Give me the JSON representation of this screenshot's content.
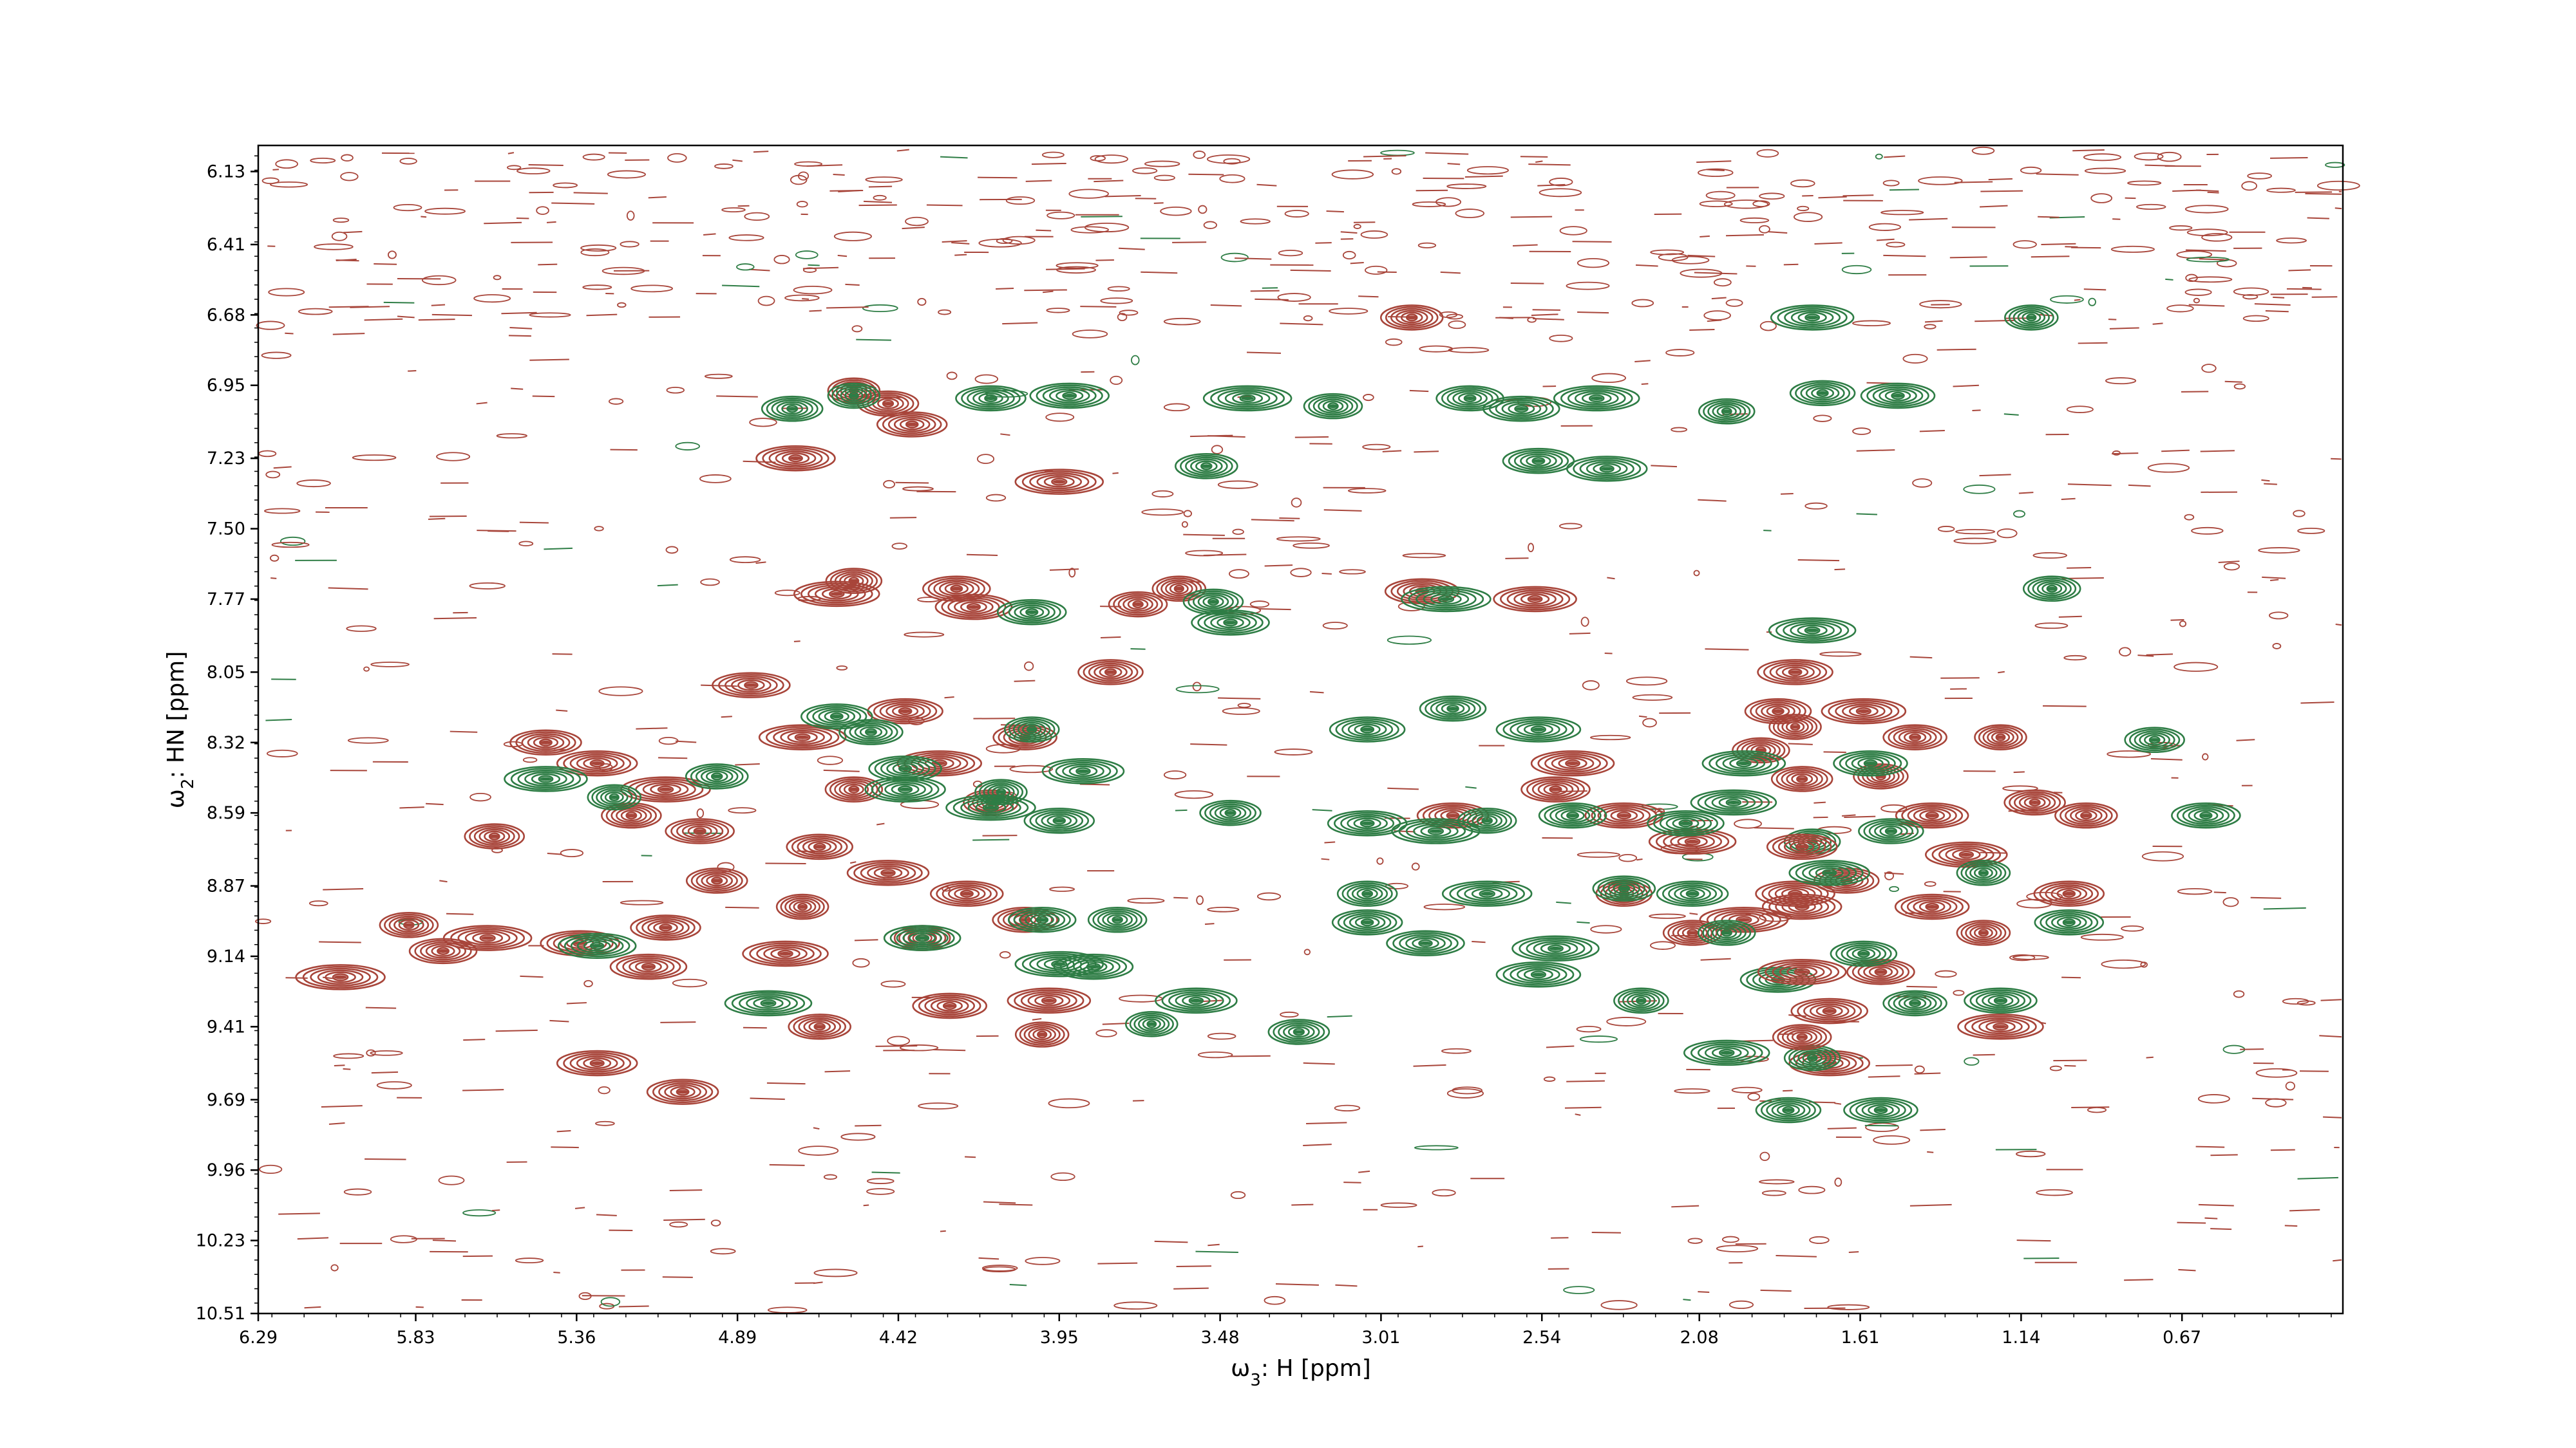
{
  "chart_data": {
    "type": "contour",
    "xlabel_symbol": "ω",
    "xlabel_sub": "3",
    "xlabel_rest": ": H [ppm]",
    "ylabel_symbol": "ω",
    "ylabel_sub": "2",
    "ylabel_rest": ": HN [ppm]",
    "xlim": [
      6.29,
      0.2
    ],
    "ylim": [
      6.03,
      10.51
    ],
    "x_ticks": [
      "6.29",
      "5.83",
      "5.36",
      "4.89",
      "4.42",
      "3.95",
      "3.48",
      "3.01",
      "2.54",
      "2.08",
      "1.61",
      "1.14",
      "0.67"
    ],
    "y_ticks": [
      "6.13",
      "6.41",
      "6.68",
      "6.95",
      "7.23",
      "7.50",
      "7.77",
      "8.05",
      "8.32",
      "8.59",
      "8.87",
      "9.14",
      "9.41",
      "9.69",
      "9.96",
      "10.23",
      "10.51"
    ],
    "colors": {
      "positive": "#a8453a",
      "negative": "#2e7d45"
    },
    "series": [
      {
        "sign": "positive",
        "peaks": [
          {
            "x": 4.55,
            "y": 6.97
          },
          {
            "x": 4.45,
            "y": 7.02
          },
          {
            "x": 4.38,
            "y": 7.1
          },
          {
            "x": 4.72,
            "y": 7.23
          },
          {
            "x": 3.95,
            "y": 7.32
          },
          {
            "x": 3.72,
            "y": 7.79
          },
          {
            "x": 4.25,
            "y": 7.73
          },
          {
            "x": 4.2,
            "y": 7.8
          },
          {
            "x": 4.6,
            "y": 7.75
          },
          {
            "x": 4.55,
            "y": 7.7
          },
          {
            "x": 3.8,
            "y": 8.05
          },
          {
            "x": 2.89,
            "y": 7.74
          },
          {
            "x": 2.56,
            "y": 7.77
          },
          {
            "x": 3.6,
            "y": 7.73
          },
          {
            "x": 2.92,
            "y": 6.69
          },
          {
            "x": 5.45,
            "y": 8.32
          },
          {
            "x": 5.3,
            "y": 8.4
          },
          {
            "x": 5.1,
            "y": 8.5
          },
          {
            "x": 5.2,
            "y": 8.6
          },
          {
            "x": 5.0,
            "y": 8.66
          },
          {
            "x": 4.85,
            "y": 8.1
          },
          {
            "x": 4.7,
            "y": 8.3
          },
          {
            "x": 4.55,
            "y": 8.5
          },
          {
            "x": 4.65,
            "y": 8.72
          },
          {
            "x": 4.4,
            "y": 8.2
          },
          {
            "x": 4.3,
            "y": 8.4
          },
          {
            "x": 4.15,
            "y": 8.55
          },
          {
            "x": 4.05,
            "y": 8.3
          },
          {
            "x": 4.22,
            "y": 8.9
          },
          {
            "x": 4.45,
            "y": 8.82
          },
          {
            "x": 4.7,
            "y": 8.95
          },
          {
            "x": 4.95,
            "y": 8.85
          },
          {
            "x": 5.1,
            "y": 9.03
          },
          {
            "x": 5.35,
            "y": 9.09
          },
          {
            "x": 5.62,
            "y": 9.07
          },
          {
            "x": 5.85,
            "y": 9.02
          },
          {
            "x": 5.75,
            "y": 9.12
          },
          {
            "x": 5.15,
            "y": 9.18
          },
          {
            "x": 4.75,
            "y": 9.13
          },
          {
            "x": 4.35,
            "y": 9.07
          },
          {
            "x": 4.05,
            "y": 9.0
          },
          {
            "x": 4.27,
            "y": 9.33
          },
          {
            "x": 3.98,
            "y": 9.31
          },
          {
            "x": 4.0,
            "y": 9.44
          },
          {
            "x": 4.65,
            "y": 9.41
          },
          {
            "x": 5.05,
            "y": 9.66
          },
          {
            "x": 5.3,
            "y": 9.55
          },
          {
            "x": 6.05,
            "y": 9.22
          },
          {
            "x": 5.6,
            "y": 8.68
          },
          {
            "x": 2.5,
            "y": 8.5
          },
          {
            "x": 2.3,
            "y": 8.6
          },
          {
            "x": 2.1,
            "y": 8.7
          },
          {
            "x": 1.9,
            "y": 8.35
          },
          {
            "x": 1.85,
            "y": 8.2
          },
          {
            "x": 1.8,
            "y": 8.05
          },
          {
            "x": 1.6,
            "y": 8.2
          },
          {
            "x": 1.55,
            "y": 8.45
          },
          {
            "x": 1.45,
            "y": 8.3
          },
          {
            "x": 1.4,
            "y": 8.6
          },
          {
            "x": 1.3,
            "y": 8.75
          },
          {
            "x": 1.2,
            "y": 8.3
          },
          {
            "x": 1.1,
            "y": 8.55
          },
          {
            "x": 1.0,
            "y": 8.9
          },
          {
            "x": 1.8,
            "y": 8.9
          },
          {
            "x": 1.95,
            "y": 9.0
          },
          {
            "x": 2.1,
            "y": 9.05
          },
          {
            "x": 1.55,
            "y": 9.2
          },
          {
            "x": 1.7,
            "y": 9.35
          },
          {
            "x": 1.2,
            "y": 9.41
          },
          {
            "x": 2.3,
            "y": 8.9
          },
          {
            "x": 1.65,
            "y": 8.85
          },
          {
            "x": 1.4,
            "y": 8.95
          },
          {
            "x": 2.45,
            "y": 8.4
          },
          {
            "x": 1.25,
            "y": 9.05
          },
          {
            "x": 0.95,
            "y": 8.6
          },
          {
            "x": 2.8,
            "y": 8.6
          },
          {
            "x": 1.7,
            "y": 9.55
          }
        ]
      },
      {
        "sign": "negative",
        "peaks": [
          {
            "x": 4.55,
            "y": 6.99
          },
          {
            "x": 4.73,
            "y": 7.04
          },
          {
            "x": 4.15,
            "y": 7.0
          },
          {
            "x": 3.92,
            "y": 6.99
          },
          {
            "x": 3.4,
            "y": 7.0
          },
          {
            "x": 3.15,
            "y": 7.03
          },
          {
            "x": 2.75,
            "y": 7.0
          },
          {
            "x": 2.6,
            "y": 7.04
          },
          {
            "x": 2.38,
            "y": 7.0
          },
          {
            "x": 2.0,
            "y": 7.05
          },
          {
            "x": 1.72,
            "y": 6.98
          },
          {
            "x": 1.5,
            "y": 6.99
          },
          {
            "x": 1.75,
            "y": 6.69
          },
          {
            "x": 1.11,
            "y": 6.69
          },
          {
            "x": 3.52,
            "y": 7.26
          },
          {
            "x": 2.55,
            "y": 7.24
          },
          {
            "x": 2.35,
            "y": 7.27
          },
          {
            "x": 2.82,
            "y": 7.77
          },
          {
            "x": 3.5,
            "y": 7.78
          },
          {
            "x": 4.03,
            "y": 7.82
          },
          {
            "x": 3.45,
            "y": 7.86
          },
          {
            "x": 1.75,
            "y": 7.89
          },
          {
            "x": 1.05,
            "y": 7.73
          },
          {
            "x": 2.8,
            "y": 8.19
          },
          {
            "x": 3.05,
            "y": 8.27
          },
          {
            "x": 2.55,
            "y": 8.27
          },
          {
            "x": 4.03,
            "y": 8.27
          },
          {
            "x": 4.5,
            "y": 8.28
          },
          {
            "x": 4.4,
            "y": 8.42
          },
          {
            "x": 3.88,
            "y": 8.43
          },
          {
            "x": 4.12,
            "y": 8.51
          },
          {
            "x": 3.45,
            "y": 8.59
          },
          {
            "x": 3.95,
            "y": 8.62
          },
          {
            "x": 3.05,
            "y": 8.63
          },
          {
            "x": 2.85,
            "y": 8.66
          },
          {
            "x": 2.7,
            "y": 8.62
          },
          {
            "x": 2.45,
            "y": 8.6
          },
          {
            "x": 2.12,
            "y": 8.63
          },
          {
            "x": 1.98,
            "y": 8.55
          },
          {
            "x": 1.75,
            "y": 8.7
          },
          {
            "x": 1.52,
            "y": 8.66
          },
          {
            "x": 1.58,
            "y": 8.4
          },
          {
            "x": 1.95,
            "y": 8.4
          },
          {
            "x": 1.25,
            "y": 8.82
          },
          {
            "x": 2.3,
            "y": 8.88
          },
          {
            "x": 2.1,
            "y": 8.9
          },
          {
            "x": 1.7,
            "y": 8.82
          },
          {
            "x": 2.7,
            "y": 8.9
          },
          {
            "x": 3.05,
            "y": 8.9
          },
          {
            "x": 1.0,
            "y": 9.01
          },
          {
            "x": 2.88,
            "y": 9.09
          },
          {
            "x": 2.5,
            "y": 9.11
          },
          {
            "x": 2.0,
            "y": 9.05
          },
          {
            "x": 1.6,
            "y": 9.13
          },
          {
            "x": 1.85,
            "y": 9.23
          },
          {
            "x": 2.55,
            "y": 9.21
          },
          {
            "x": 2.25,
            "y": 9.31
          },
          {
            "x": 1.45,
            "y": 9.32
          },
          {
            "x": 1.2,
            "y": 9.31
          },
          {
            "x": 3.55,
            "y": 9.31
          },
          {
            "x": 3.68,
            "y": 9.4
          },
          {
            "x": 3.25,
            "y": 9.43
          },
          {
            "x": 3.05,
            "y": 9.01
          },
          {
            "x": 3.85,
            "y": 9.18
          },
          {
            "x": 3.95,
            "y": 9.17
          },
          {
            "x": 3.78,
            "y": 9.0
          },
          {
            "x": 4.0,
            "y": 9.0
          },
          {
            "x": 4.35,
            "y": 9.07
          },
          {
            "x": 2.0,
            "y": 9.51
          },
          {
            "x": 1.75,
            "y": 9.53
          },
          {
            "x": 1.82,
            "y": 9.73
          },
          {
            "x": 1.55,
            "y": 9.73
          },
          {
            "x": 5.45,
            "y": 8.46
          },
          {
            "x": 5.25,
            "y": 8.53
          },
          {
            "x": 4.95,
            "y": 8.45
          },
          {
            "x": 4.6,
            "y": 8.22
          },
          {
            "x": 4.4,
            "y": 8.5
          },
          {
            "x": 4.15,
            "y": 8.57
          },
          {
            "x": 0.75,
            "y": 8.31
          },
          {
            "x": 0.6,
            "y": 8.6
          },
          {
            "x": 5.3,
            "y": 9.1
          },
          {
            "x": 4.8,
            "y": 9.32
          }
        ]
      },
      {
        "sign": "positive",
        "peaks": [
          {
            "x": 1.8,
            "y": 8.26
          },
          {
            "x": 1.78,
            "y": 8.46
          },
          {
            "x": 1.78,
            "y": 8.72
          },
          {
            "x": 1.78,
            "y": 8.95
          },
          {
            "x": 1.78,
            "y": 9.2
          },
          {
            "x": 1.78,
            "y": 9.45
          }
        ]
      }
    ]
  }
}
